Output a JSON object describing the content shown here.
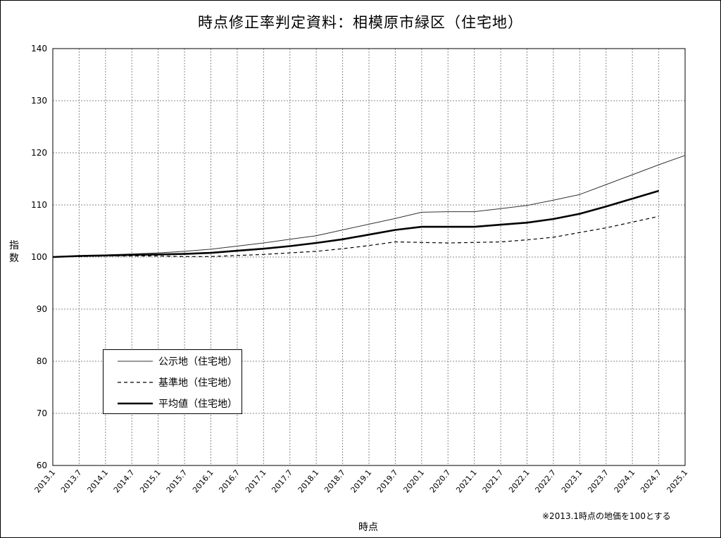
{
  "window": {
    "title": "時点修正率判定資料：相模原市緑区（住宅地）"
  },
  "chart_data": {
    "type": "line",
    "title": "時点修正率判定資料：相模原市緑区（住宅地）",
    "xlabel": "時点",
    "ylabel": "指数",
    "ylim": [
      60,
      140
    ],
    "yticks": [
      60,
      70,
      80,
      90,
      100,
      110,
      120,
      130,
      140
    ],
    "grid": true,
    "legend_position": "lower-left",
    "note": "※2013.1時点の地価を100とする",
    "categories": [
      "2013.1",
      "2013.7",
      "2014.1",
      "2014.7",
      "2015.1",
      "2015.7",
      "2016.1",
      "2016.7",
      "2017.1",
      "2017.7",
      "2018.1",
      "2018.7",
      "2019.1",
      "2019.7",
      "2020.1",
      "2020.7",
      "2021.1",
      "2021.7",
      "2022.1",
      "2022.7",
      "2023.1",
      "2023.7",
      "2024.1",
      "2024.7",
      "2025.1"
    ],
    "series": [
      {
        "name": "公示地（住宅地）",
        "style": "thin",
        "color": "#333333",
        "values": [
          100,
          100.2,
          100.4,
          100.6,
          100.8,
          101.1,
          101.5,
          102.1,
          102.7,
          103.4,
          104.1,
          105.2,
          106.3,
          107.4,
          108.6,
          108.7,
          108.7,
          109.3,
          109.9,
          110.9,
          112.0,
          113.9,
          115.8,
          117.7,
          119.5
        ]
      },
      {
        "name": "基準地（住宅地）",
        "style": "dashed",
        "color": "#000000",
        "values": [
          100,
          100.1,
          100.2,
          100.2,
          100.2,
          100.1,
          100.1,
          100.3,
          100.5,
          100.8,
          101.1,
          101.6,
          102.2,
          102.9,
          102.8,
          102.7,
          102.8,
          102.9,
          103.3,
          103.8,
          104.7,
          105.6,
          106.7,
          107.8,
          null
        ]
      },
      {
        "name": "平均値（住宅地）",
        "style": "thick",
        "color": "#000000",
        "values": [
          100,
          100.2,
          100.3,
          100.4,
          100.5,
          100.6,
          100.8,
          101.2,
          101.6,
          102.1,
          102.7,
          103.4,
          104.3,
          105.2,
          105.8,
          105.8,
          105.8,
          106.2,
          106.6,
          107.3,
          108.3,
          109.7,
          111.2,
          112.7,
          null
        ]
      }
    ]
  }
}
